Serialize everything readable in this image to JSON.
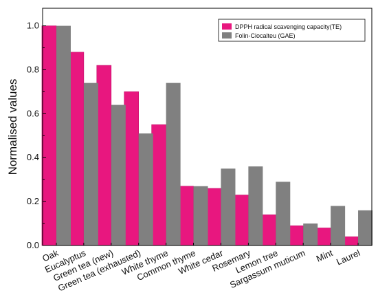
{
  "chart_data": {
    "type": "bar",
    "categories": [
      "Oak",
      "Eucalyptus",
      "Green tea (new)",
      "Green tea (exhausted)",
      "White thyme",
      "Common thyme",
      "White cedar",
      "Rosemary",
      "Lemon tree",
      "Sargassum muticum",
      "Mint",
      "Laurel"
    ],
    "series": [
      {
        "name": "DPPH radical scavenging capacity(TE)",
        "color": "#e8177f",
        "values": [
          1.0,
          0.88,
          0.82,
          0.7,
          0.55,
          0.27,
          0.26,
          0.23,
          0.14,
          0.09,
          0.08,
          0.04
        ]
      },
      {
        "name": "Folin-Ciocalteu (GAE)",
        "color": "#808080",
        "values": [
          1.0,
          0.74,
          0.64,
          0.51,
          0.74,
          0.27,
          0.35,
          0.36,
          0.29,
          0.1,
          0.18,
          0.16
        ]
      }
    ],
    "title": "",
    "xlabel": "",
    "ylabel": "Normalised values",
    "ylim": [
      0,
      1.08
    ],
    "yticks": [
      "0.0",
      "0.2",
      "0.4",
      "0.6",
      "0.8",
      "1.0"
    ],
    "grid": false,
    "legend_position": "top-right"
  }
}
